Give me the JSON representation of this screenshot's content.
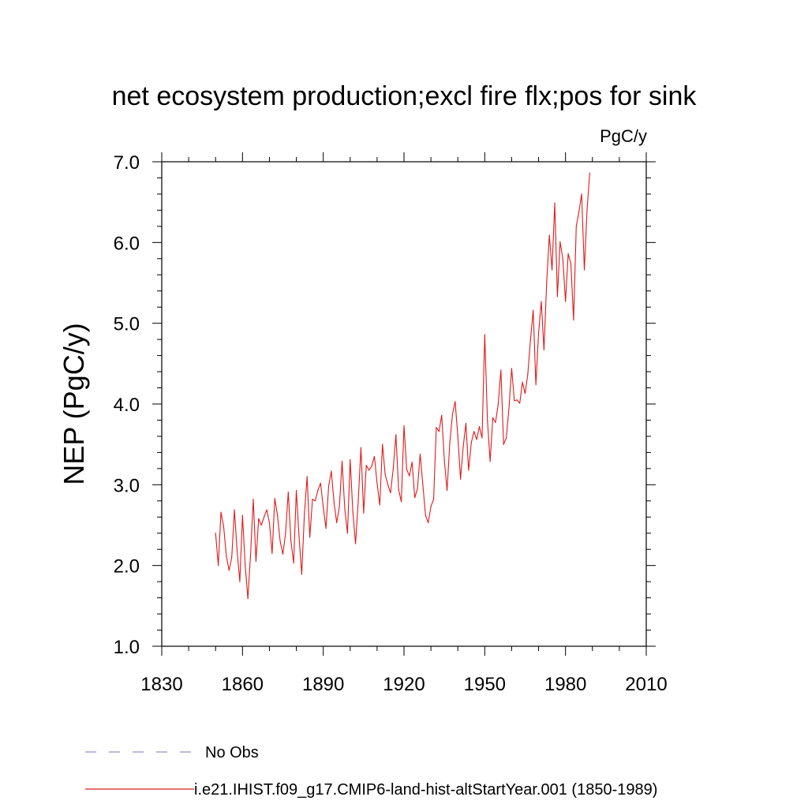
{
  "chart_data": {
    "type": "line",
    "title": "net ecosystem production;excl fire flx;pos for sink",
    "units_label": "PgC/y",
    "xlabel": "",
    "ylabel": "NEP  (PgC/y)",
    "xlim": [
      1830,
      2010
    ],
    "ylim": [
      1.0,
      7.0
    ],
    "xticks": [
      1830,
      1860,
      1890,
      1920,
      1950,
      1980,
      2010
    ],
    "yticks": [
      1.0,
      2.0,
      3.0,
      4.0,
      5.0,
      6.0,
      7.0
    ],
    "xtick_labels": [
      "1830",
      "1860",
      "1890",
      "1920",
      "1950",
      "1980",
      "2010"
    ],
    "ytick_labels": [
      "1.0",
      "2.0",
      "3.0",
      "4.0",
      "5.0",
      "6.0",
      "7.0"
    ],
    "grid": false,
    "legend_position": "bottom",
    "legend": [
      {
        "name": "No Obs",
        "style": "dashed",
        "color": "#9a8fc2"
      },
      {
        "name": "i.e21.IHIST.f09_g17.CMIP6-land-hist-altStartYear.001 (1850-1989)",
        "style": "solid",
        "color": "#e01a1a"
      }
    ],
    "series": [
      {
        "name": "i.e21.IHIST.f09_g17.CMIP6-land-hist-altStartYear.001 (1850-1989)",
        "color": "#e01a1a",
        "x_start": 1850,
        "values": [
          2.4,
          2.0,
          2.66,
          2.48,
          2.12,
          1.94,
          2.1,
          2.69,
          2.18,
          1.8,
          2.62,
          2.0,
          1.59,
          2.14,
          2.82,
          2.05,
          2.58,
          2.5,
          2.6,
          2.69,
          2.53,
          2.15,
          2.83,
          2.62,
          2.3,
          2.14,
          2.4,
          2.91,
          2.3,
          2.03,
          2.93,
          2.36,
          1.89,
          2.64,
          3.1,
          2.35,
          2.82,
          2.8,
          2.93,
          3.02,
          2.72,
          2.46,
          2.98,
          3.17,
          2.78,
          2.53,
          2.73,
          3.29,
          2.7,
          2.4,
          3.31,
          2.66,
          2.27,
          2.8,
          3.46,
          2.65,
          3.24,
          3.18,
          3.23,
          3.35,
          3.02,
          2.75,
          3.5,
          3.13,
          3.0,
          2.9,
          3.2,
          3.62,
          2.94,
          2.79,
          3.73,
          3.19,
          3.11,
          3.28,
          2.84,
          2.95,
          3.38,
          3.0,
          2.62,
          2.53,
          2.73,
          2.82,
          3.71,
          3.66,
          3.86,
          3.3,
          2.93,
          3.51,
          3.87,
          4.03,
          3.6,
          3.07,
          3.47,
          3.76,
          3.18,
          3.52,
          3.66,
          3.56,
          3.72,
          3.58,
          4.86,
          3.8,
          3.29,
          3.83,
          3.77,
          4.0,
          4.42,
          3.5,
          3.58,
          3.95,
          4.44,
          4.04,
          4.05,
          4.01,
          4.27,
          4.13,
          4.37,
          4.8,
          5.16,
          4.24,
          4.88,
          5.27,
          4.67,
          5.5,
          6.09,
          5.66,
          6.49,
          5.33,
          6.01,
          5.8,
          5.27,
          5.86,
          5.74,
          5.04,
          6.2,
          6.38,
          6.6,
          5.66,
          6.4,
          6.86
        ]
      }
    ]
  }
}
